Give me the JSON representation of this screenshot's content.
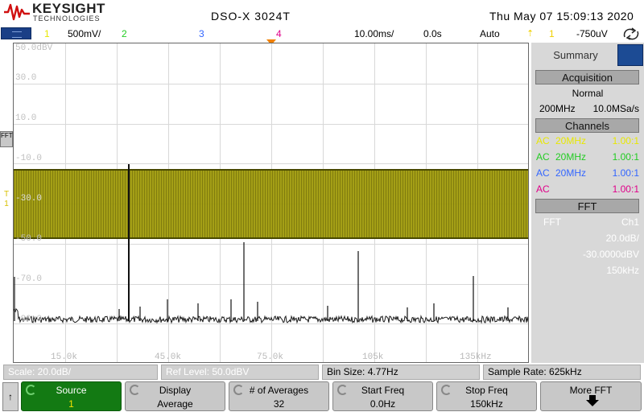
{
  "header": {
    "brand": "KEYSIGHT",
    "brand_sub": "TECHNOLOGIES",
    "model": "DSO-X 3024T",
    "datetime": "Thu May 07 15:09:13 2020"
  },
  "status": {
    "ch1_num": "1",
    "ch1_scale": "500mV/",
    "ch2_num": "2",
    "ch3_num": "3",
    "ch4_num": "4",
    "timebase": "10.00ms/",
    "delay": "0.0s",
    "trigger_mode": "Auto",
    "trigger_icon": "trigger-edge-icon",
    "trigger_source": "1",
    "trigger_level": "-750uV"
  },
  "graticule": {
    "y_labels": [
      "50.0dBV",
      "30.0",
      "10.0",
      "-10.0",
      "-30.0",
      "-50.0",
      "-70.0",
      "-90.0"
    ],
    "x_labels": [
      "15.0k",
      "45.0k",
      "75.0k",
      "105k",
      "135kHz"
    ],
    "fft_marker": "FFT",
    "ch1_marker": "T\n1"
  },
  "right_panel": {
    "tab": "Summary",
    "acquisition_header": "Acquisition",
    "acq_mode": "Normal",
    "acq_bw": "200MHz",
    "acq_rate": "10.0MSa/s",
    "channels_header": "Channels",
    "channels": [
      {
        "coupling": "AC",
        "bw": "20MHz",
        "probe": "1.00:1",
        "color": "#e8e800"
      },
      {
        "coupling": "AC",
        "bw": "20MHz",
        "probe": "1.00:1",
        "color": "#22cc22"
      },
      {
        "coupling": "AC",
        "bw": "20MHz",
        "probe": "1.00:1",
        "color": "#3366ff"
      },
      {
        "coupling": "AC",
        "bw": "",
        "probe": "1.00:1",
        "color": "#e0008a"
      }
    ],
    "fft_header": "FFT",
    "fft_label": "FFT",
    "fft_source": "Ch1",
    "fft_scale": "20.0dB/",
    "fft_offset": "-30.0000dBV",
    "fft_span": "150kHz"
  },
  "info_row": {
    "scale": "Scale: 20.0dB/",
    "ref_level": "Ref Level: 50.0dBV",
    "bin_size": "Bin Size: 4.77Hz",
    "sample_rate": "Sample Rate: 625kHz"
  },
  "softkeys": {
    "back": "↑",
    "source_label": "Source",
    "source_value": "1",
    "display_label": "Display",
    "display_value": "Average",
    "averages_label": "# of Averages",
    "averages_value": "32",
    "start_label": "Start Freq",
    "start_value": "0.0Hz",
    "stop_label": "Stop Freq",
    "stop_value": "150kHz",
    "more_label": "More FFT"
  },
  "colors": {
    "ch1": "#e8e800",
    "ch2": "#22cc22",
    "ch3": "#3366ff",
    "ch4": "#e0008a",
    "active_softkey": "#137a13",
    "fft_band": "#9f9a0a"
  }
}
